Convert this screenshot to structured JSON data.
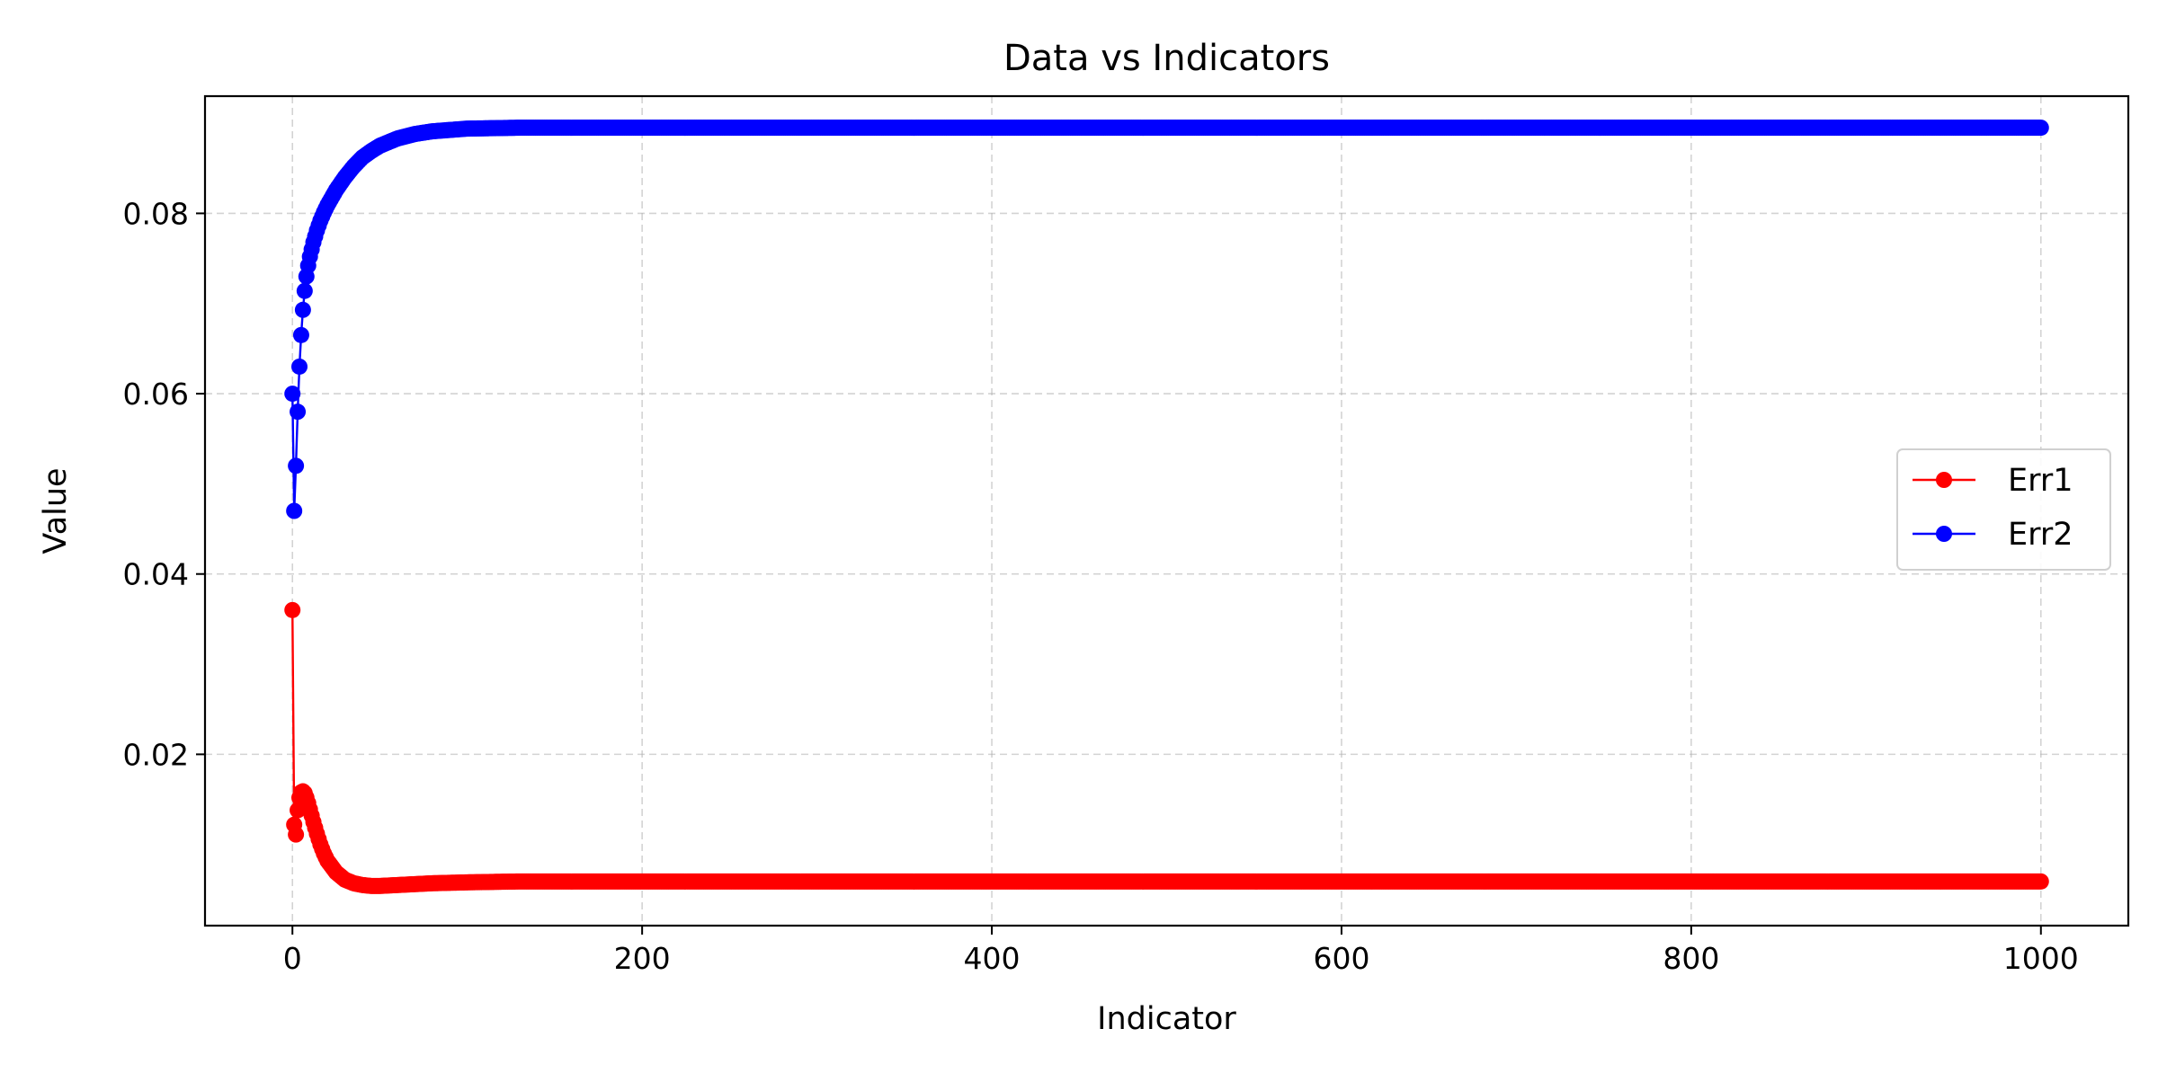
{
  "chart_data": {
    "type": "line",
    "title": "Data vs Indicators",
    "xlabel": "Indicator",
    "ylabel": "Value",
    "xlim": [
      -50,
      1050
    ],
    "ylim": [
      0.001,
      0.093
    ],
    "xticks": [
      0,
      200,
      400,
      600,
      800,
      1000
    ],
    "xtick_labels": [
      "0",
      "200",
      "400",
      "600",
      "800",
      "1000"
    ],
    "yticks": [
      0.02,
      0.04,
      0.06,
      0.08
    ],
    "ytick_labels": [
      "0.02",
      "0.04",
      "0.06",
      "0.08"
    ],
    "grid": true,
    "legend_position": "center-right",
    "marker": "circle",
    "x_range": [
      0,
      1000
    ],
    "x_step": 1,
    "series": [
      {
        "name": "Err1",
        "color": "#ff0000",
        "points": [
          [
            0,
            0.036
          ],
          [
            1,
            0.0122
          ],
          [
            2,
            0.0111
          ],
          [
            3,
            0.0138
          ],
          [
            4,
            0.0152
          ],
          [
            5,
            0.0158
          ],
          [
            6,
            0.0159
          ],
          [
            7,
            0.0157
          ],
          [
            8,
            0.0152
          ],
          [
            9,
            0.0146
          ],
          [
            10,
            0.0139
          ],
          [
            12,
            0.0125
          ],
          [
            14,
            0.0112
          ],
          [
            16,
            0.01
          ],
          [
            18,
            0.009
          ],
          [
            20,
            0.0082
          ],
          [
            25,
            0.0069
          ],
          [
            30,
            0.0061
          ],
          [
            35,
            0.0057
          ],
          [
            40,
            0.0055
          ],
          [
            45,
            0.0054
          ],
          [
            50,
            0.0054
          ],
          [
            60,
            0.0055
          ],
          [
            70,
            0.0056
          ],
          [
            80,
            0.0057
          ],
          [
            100,
            0.0058
          ],
          [
            130,
            0.0059
          ],
          [
            200,
            0.0059
          ],
          [
            1000,
            0.0059
          ]
        ]
      },
      {
        "name": "Err2",
        "color": "#0000ff",
        "points": [
          [
            0,
            0.06
          ],
          [
            1,
            0.047
          ],
          [
            2,
            0.052
          ],
          [
            3,
            0.058
          ],
          [
            4,
            0.063
          ],
          [
            5,
            0.0665
          ],
          [
            6,
            0.0693
          ],
          [
            7,
            0.0714
          ],
          [
            8,
            0.073
          ],
          [
            9,
            0.0742
          ],
          [
            10,
            0.0752
          ],
          [
            12,
            0.0768
          ],
          [
            14,
            0.0781
          ],
          [
            16,
            0.0792
          ],
          [
            18,
            0.0801
          ],
          [
            20,
            0.0809
          ],
          [
            25,
            0.0826
          ],
          [
            30,
            0.084
          ],
          [
            35,
            0.0852
          ],
          [
            40,
            0.0862
          ],
          [
            45,
            0.0869
          ],
          [
            50,
            0.0875
          ],
          [
            60,
            0.0883
          ],
          [
            70,
            0.0888
          ],
          [
            80,
            0.0891
          ],
          [
            100,
            0.0894
          ],
          [
            130,
            0.0895
          ],
          [
            200,
            0.0895
          ],
          [
            1000,
            0.0895
          ]
        ]
      }
    ]
  }
}
